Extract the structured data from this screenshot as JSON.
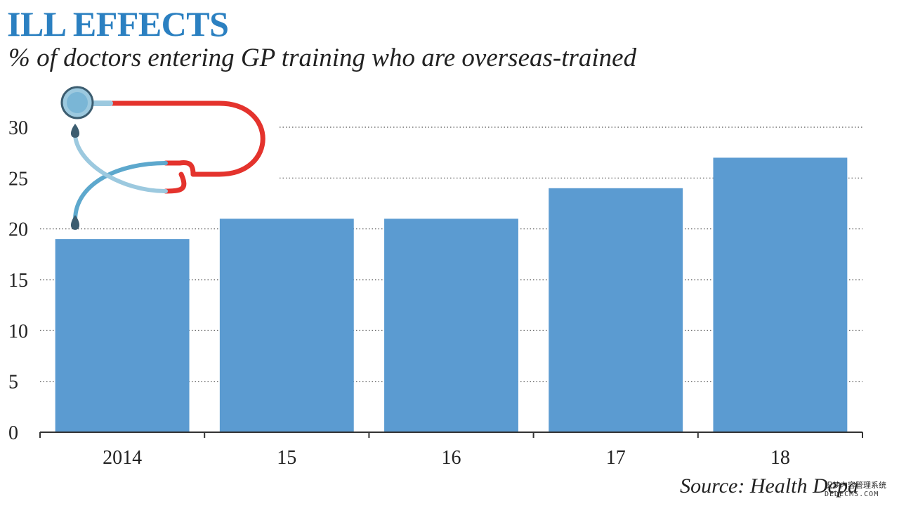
{
  "title": "ILL EFFECTS",
  "subtitle": "% of doctors entering GP training who are overseas-trained",
  "source": "Source: Health Depa",
  "watermark": {
    "line1": "织梦内容管理系统",
    "line2": "DEDECMS.COM"
  },
  "colors": {
    "title": "#2b80c1",
    "bar": "#5b9bd1",
    "grid": "#555555",
    "axis": "#333333",
    "stethoscope_red": "#e4332d",
    "stethoscope_blue": "#9cc9df",
    "stethoscope_dark": "#3c5d70"
  },
  "illustration": "stethoscope-icon",
  "chart_data": {
    "type": "bar",
    "categories": [
      "2014",
      "15",
      "16",
      "17",
      "18"
    ],
    "values": [
      19,
      21,
      21,
      24,
      27
    ],
    "title": "ILL EFFECTS",
    "subtitle": "% of doctors entering GP training who are overseas-trained",
    "xlabel": "",
    "ylabel": "",
    "ylim": [
      0,
      30
    ],
    "yticks": [
      0,
      5,
      10,
      15,
      20,
      25,
      30
    ],
    "grid": "horizontal dotted",
    "legend": "none"
  }
}
